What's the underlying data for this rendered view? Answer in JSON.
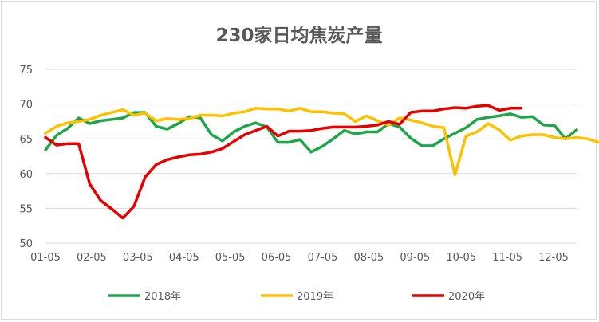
{
  "chart_data": {
    "type": "line",
    "title": "230家日均焦炭产量",
    "xlabel": "",
    "ylabel": "",
    "ylim": [
      50,
      75
    ],
    "yticks": [
      50,
      55,
      60,
      65,
      70,
      75
    ],
    "xticks": [
      "01-05",
      "02-05",
      "03-05",
      "04-05",
      "05-05",
      "06-05",
      "07-05",
      "08-05",
      "09-05",
      "10-05",
      "11-05",
      "12-05"
    ],
    "x_range_weeks": [
      0,
      48
    ],
    "grid": true,
    "legend_position": "bottom",
    "series": [
      {
        "name": "2018年",
        "color": "#1fa64a",
        "x": [
          0,
          1,
          2,
          3,
          4,
          5,
          6,
          7,
          8,
          9,
          10,
          11,
          12,
          13,
          14,
          15,
          16,
          17,
          18,
          19,
          20,
          21,
          22,
          23,
          24,
          25,
          26,
          27,
          28,
          29,
          30,
          31,
          32,
          33,
          34,
          35,
          36,
          37,
          38,
          39,
          40,
          41,
          42,
          43,
          44,
          45,
          46,
          47,
          48
        ],
        "values": [
          63.4,
          65.5,
          66.5,
          68.0,
          67.2,
          67.6,
          67.8,
          68.0,
          68.8,
          68.8,
          66.8,
          66.4,
          67.2,
          68.2,
          68.0,
          65.6,
          64.7,
          66.0,
          66.8,
          67.3,
          66.7,
          64.5,
          64.5,
          64.9,
          63.1,
          63.9,
          65.0,
          66.2,
          65.7,
          66.0,
          66.0,
          67.2,
          66.7,
          65.1,
          64.0,
          64.0,
          65.0,
          65.8,
          66.6,
          67.8,
          68.1,
          68.3,
          68.6,
          68.1,
          68.2,
          67.0,
          66.9,
          65.0,
          66.3
        ]
      },
      {
        "name": "2019年",
        "color": "#ffc000",
        "x": [
          0,
          1,
          2,
          3,
          4,
          5,
          6,
          7,
          8,
          9,
          10,
          11,
          12,
          13,
          14,
          15,
          16,
          17,
          18,
          19,
          20,
          21,
          22,
          23,
          24,
          25,
          26,
          27,
          28,
          29,
          30,
          31,
          32,
          33,
          34,
          35,
          36,
          37,
          38,
          39,
          40,
          41,
          42,
          43,
          44,
          45,
          46,
          47,
          48,
          49,
          50
        ],
        "values": [
          65.8,
          66.8,
          67.3,
          67.5,
          67.8,
          68.4,
          68.8,
          69.2,
          68.4,
          68.7,
          67.6,
          67.9,
          67.8,
          67.9,
          68.4,
          68.4,
          68.3,
          68.7,
          68.9,
          69.4,
          69.3,
          69.3,
          69.0,
          69.4,
          68.9,
          68.9,
          68.7,
          68.6,
          67.5,
          68.3,
          67.6,
          67.0,
          68.0,
          67.7,
          67.3,
          66.8,
          66.6,
          59.8,
          65.4,
          66.0,
          67.2,
          66.3,
          64.8,
          65.4,
          65.6,
          65.6,
          65.2,
          65.0,
          65.2,
          65.0,
          64.5
        ]
      },
      {
        "name": "2020年",
        "color": "#e60000",
        "x": [
          0,
          1,
          2,
          3,
          4,
          5,
          6,
          7,
          8,
          9,
          10,
          11,
          12,
          13,
          14,
          15,
          16,
          17,
          18,
          19,
          20,
          21,
          22,
          23,
          24,
          25,
          26,
          27,
          28,
          29,
          30,
          31,
          32,
          33,
          34,
          35,
          36,
          37,
          38,
          39,
          40,
          41,
          42,
          43
        ],
        "values": [
          65.2,
          64.1,
          64.3,
          64.3,
          58.5,
          56.1,
          54.9,
          53.6,
          55.3,
          59.5,
          61.3,
          62.0,
          62.4,
          62.7,
          62.8,
          63.1,
          63.6,
          64.6,
          65.6,
          66.2,
          66.8,
          65.4,
          66.1,
          66.1,
          66.2,
          66.5,
          66.7,
          66.7,
          66.7,
          66.8,
          67.0,
          67.5,
          67.1,
          68.8,
          69.0,
          69.0,
          69.3,
          69.5,
          69.4,
          69.7,
          69.8,
          69.1,
          69.4,
          69.4
        ]
      }
    ]
  }
}
